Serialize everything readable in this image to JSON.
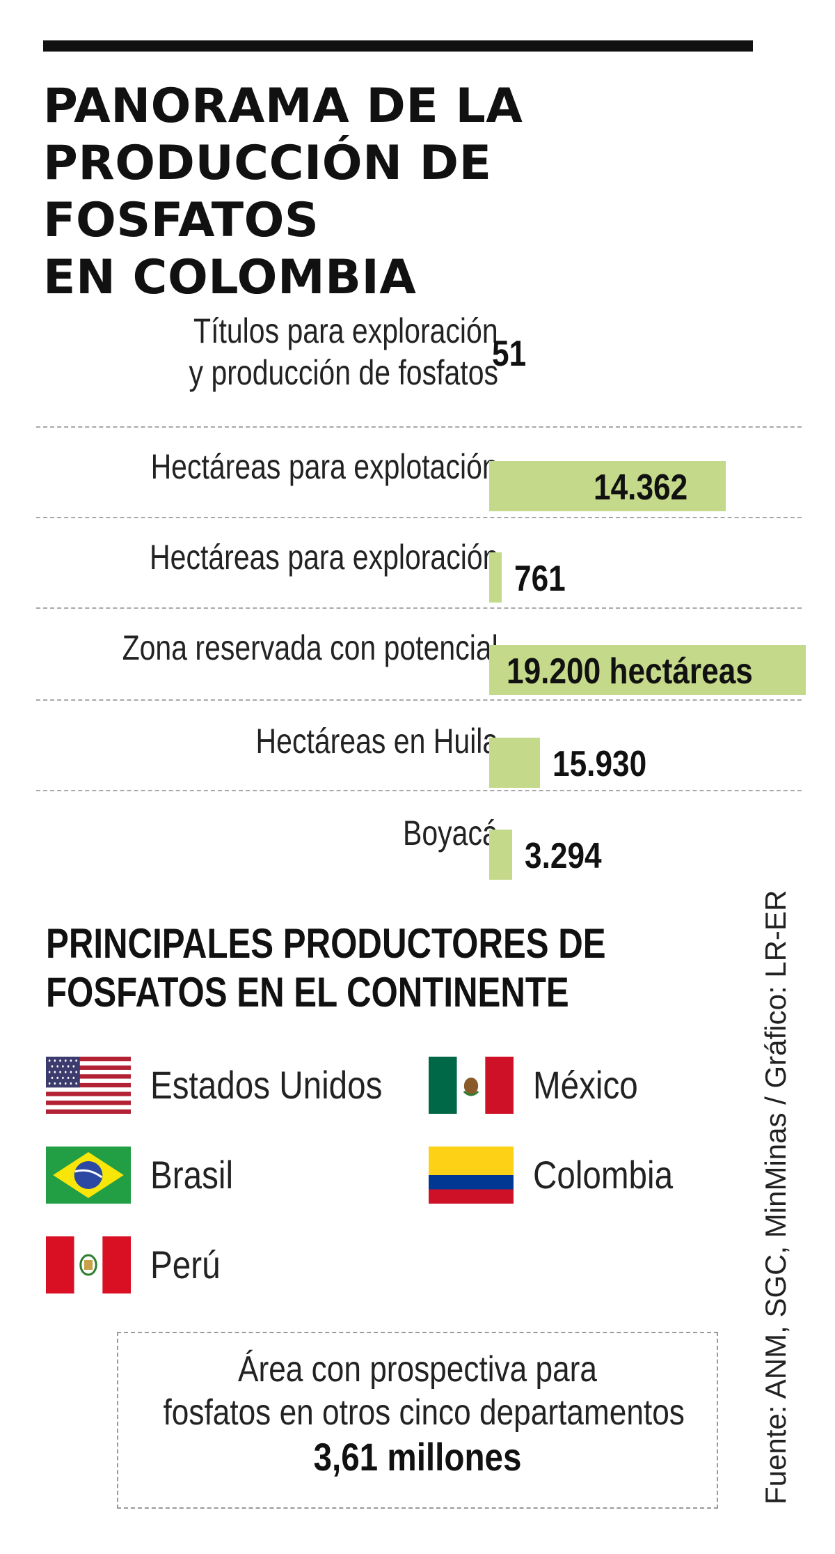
{
  "title_lines": [
    "PANORAMA DE LA",
    "PRODUCCIÓN DE FOSFATOS",
    "EN COLOMBIA"
  ],
  "stats": [
    {
      "label_lines": [
        "Títulos para exploración",
        "y producción de fosfatos"
      ],
      "value_text": "51",
      "has_bar": false
    },
    {
      "label_lines": [
        "Hectáreas para explotación"
      ],
      "value_text": "14.362",
      "value": 14362,
      "has_bar": true,
      "value_inside": true
    },
    {
      "label_lines": [
        "Hectáreas para exploración"
      ],
      "value_text": "761",
      "value": 761,
      "has_bar": true
    },
    {
      "label_lines": [
        "Zona reservada con potencial"
      ],
      "value_text": "19.200 hectáreas",
      "value": 19200,
      "has_bar": true,
      "value_inside": true
    },
    {
      "label_lines": [
        "Hectáreas en Huila"
      ],
      "value_text": "15.930",
      "value": 15930,
      "has_bar": true
    },
    {
      "label_lines": [
        "Boyacá"
      ],
      "value_text": "3.294",
      "value": 3294,
      "has_bar": true
    }
  ],
  "chart_data": {
    "type": "bar",
    "title": "PANORAMA DE LA PRODUCCIÓN DE FOSFATOS EN COLOMBIA",
    "categories": [
      "Títulos para exploración y producción de fosfatos",
      "Hectáreas para explotación",
      "Hectáreas para exploración",
      "Zona reservada con potencial",
      "Hectáreas en Huila",
      "Boyacá"
    ],
    "values": [
      51,
      14362,
      761,
      19200,
      15930,
      3294
    ],
    "bar_color": "#c5d98a"
  },
  "subtitle_lines": [
    "PRINCIPALES PRODUCTORES DE",
    "FOSFATOS EN EL CONTINENTE"
  ],
  "countries": [
    {
      "name": "Estados Unidos",
      "flag_icon": "usa-flag-icon"
    },
    {
      "name": "México",
      "flag_icon": "mexico-flag-icon"
    },
    {
      "name": "Brasil",
      "flag_icon": "brazil-flag-icon"
    },
    {
      "name": "Colombia",
      "flag_icon": "colombia-flag-icon"
    },
    {
      "name": "Perú",
      "flag_icon": "peru-flag-icon"
    }
  ],
  "box": {
    "line1": "Área con prospectiva para",
    "line2": "fosfatos en otros cinco departamentos",
    "value": "3,61 millones"
  },
  "source": "Fuente: ANM, SGC, MinMinas / Gráfico: LR-ER",
  "colors": {
    "bar": "#c5d98a",
    "text": "#111111",
    "divider": "#a8a8a8"
  }
}
